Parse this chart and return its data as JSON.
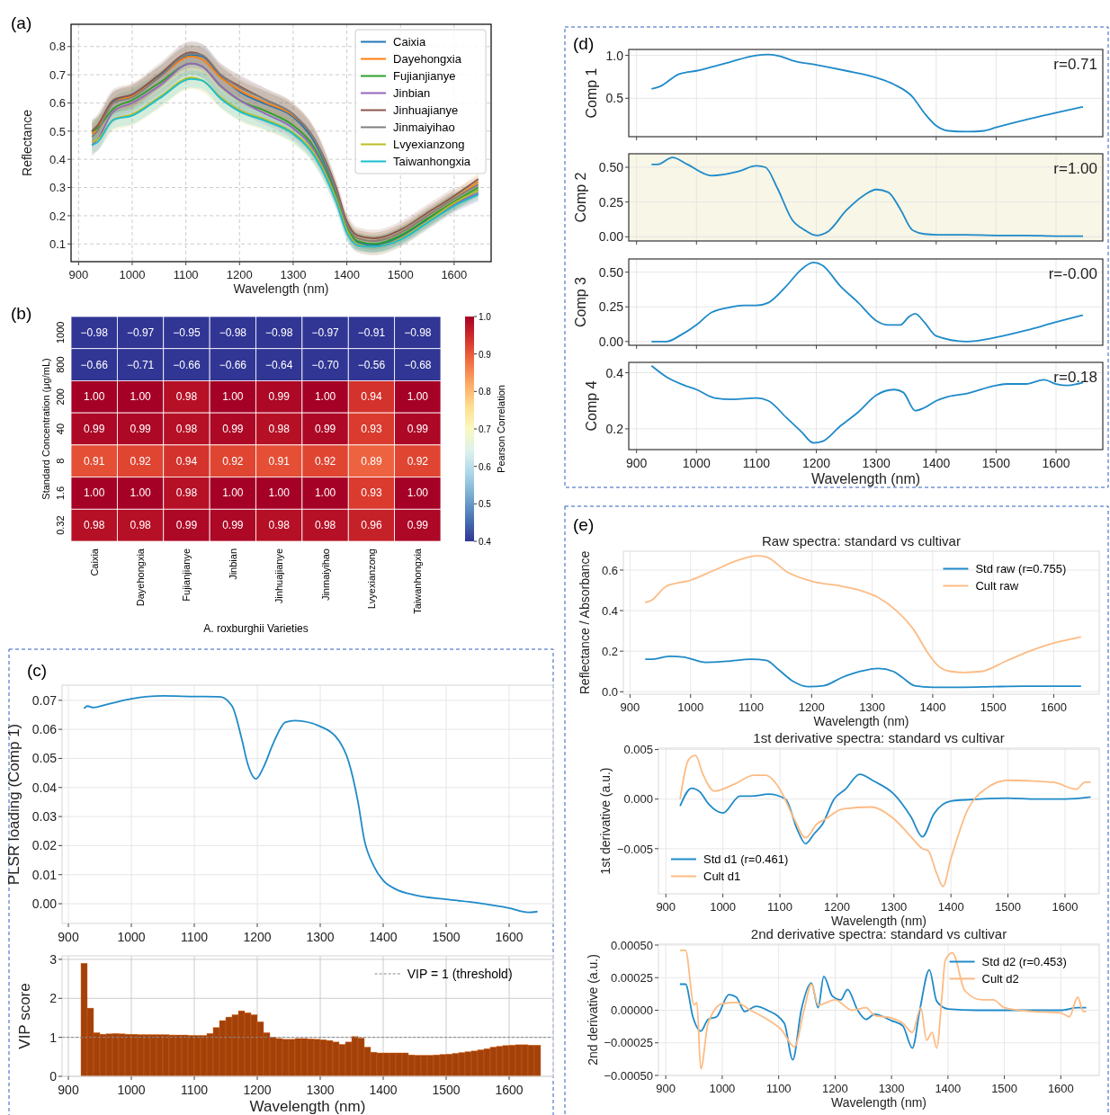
{
  "chart_data": [
    {
      "type": "line",
      "annotations": [
        "(a)"
      ],
      "xlabel": "Wavelength (nm)",
      "ylabel": "Reflectance",
      "xlim": [
        886,
        1669
      ],
      "ylim": [
        0.037,
        0.879
      ],
      "xticks": [
        900,
        1000,
        1100,
        1200,
        1300,
        1400,
        1500,
        1600
      ],
      "yticks": [
        0.1,
        0.2,
        0.3,
        0.4,
        0.5,
        0.6,
        0.7,
        0.8
      ],
      "grid": true,
      "legend": "top right",
      "x": [
        925,
        935,
        965,
        1000,
        1050,
        1110,
        1130,
        1165,
        1200,
        1250,
        1300,
        1340,
        1380,
        1400,
        1420,
        1450,
        1500,
        1550,
        1600,
        1645
      ],
      "series": [
        {
          "name": "Caixia",
          "color": "#1f77b4",
          "values": [
            0.5,
            0.515,
            0.605,
            0.63,
            0.695,
            0.77,
            0.765,
            0.695,
            0.64,
            0.595,
            0.55,
            0.46,
            0.28,
            0.16,
            0.105,
            0.095,
            0.125,
            0.185,
            0.245,
            0.29
          ],
          "lower": [
            0.45,
            0.47,
            0.56,
            0.585,
            0.65,
            0.725,
            0.72,
            0.65,
            0.6,
            0.56,
            0.51,
            0.42,
            0.25,
            0.13,
            0.08,
            0.07,
            0.1,
            0.16,
            0.22,
            0.27
          ],
          "upper": [
            0.53,
            0.55,
            0.64,
            0.665,
            0.73,
            0.805,
            0.8,
            0.73,
            0.68,
            0.64,
            0.59,
            0.5,
            0.31,
            0.19,
            0.14,
            0.13,
            0.16,
            0.22,
            0.28,
            0.33
          ]
        },
        {
          "name": "Dayehongxia",
          "color": "#ff7f0e",
          "values": [
            0.49,
            0.51,
            0.6,
            0.625,
            0.69,
            0.765,
            0.755,
            0.69,
            0.645,
            0.6,
            0.555,
            0.47,
            0.29,
            0.17,
            0.12,
            0.11,
            0.14,
            0.2,
            0.26,
            0.32
          ],
          "lower": [
            0.45,
            0.47,
            0.56,
            0.585,
            0.65,
            0.725,
            0.715,
            0.65,
            0.605,
            0.56,
            0.515,
            0.43,
            0.26,
            0.14,
            0.09,
            0.08,
            0.11,
            0.17,
            0.23,
            0.29
          ],
          "upper": [
            0.53,
            0.55,
            0.64,
            0.665,
            0.73,
            0.805,
            0.795,
            0.73,
            0.685,
            0.64,
            0.595,
            0.51,
            0.32,
            0.2,
            0.15,
            0.14,
            0.17,
            0.23,
            0.29,
            0.35
          ]
        },
        {
          "name": "Fujianjianye",
          "color": "#2ca02c",
          "values": [
            0.5,
            0.51,
            0.58,
            0.61,
            0.67,
            0.74,
            0.73,
            0.66,
            0.61,
            0.57,
            0.52,
            0.44,
            0.27,
            0.16,
            0.11,
            0.1,
            0.13,
            0.19,
            0.25,
            0.3
          ],
          "lower": [
            0.46,
            0.47,
            0.54,
            0.57,
            0.63,
            0.7,
            0.69,
            0.62,
            0.57,
            0.53,
            0.48,
            0.4,
            0.24,
            0.13,
            0.08,
            0.07,
            0.1,
            0.16,
            0.22,
            0.27
          ],
          "upper": [
            0.54,
            0.55,
            0.62,
            0.65,
            0.71,
            0.78,
            0.77,
            0.7,
            0.65,
            0.61,
            0.56,
            0.48,
            0.3,
            0.19,
            0.14,
            0.13,
            0.16,
            0.22,
            0.28,
            0.33
          ]
        },
        {
          "name": "Jinbian",
          "color": "#9467bd",
          "values": [
            0.45,
            0.47,
            0.57,
            0.6,
            0.66,
            0.74,
            0.73,
            0.66,
            0.61,
            0.56,
            0.51,
            0.43,
            0.26,
            0.15,
            0.1,
            0.09,
            0.12,
            0.18,
            0.24,
            0.28
          ],
          "lower": [
            0.41,
            0.43,
            0.53,
            0.56,
            0.62,
            0.7,
            0.69,
            0.62,
            0.57,
            0.52,
            0.47,
            0.39,
            0.23,
            0.12,
            0.07,
            0.06,
            0.09,
            0.15,
            0.21,
            0.25
          ],
          "upper": [
            0.49,
            0.51,
            0.61,
            0.64,
            0.7,
            0.78,
            0.77,
            0.7,
            0.65,
            0.6,
            0.55,
            0.47,
            0.29,
            0.18,
            0.13,
            0.12,
            0.15,
            0.21,
            0.27,
            0.31
          ]
        },
        {
          "name": "Jinhuajianye",
          "color": "#8c564b",
          "values": [
            0.5,
            0.52,
            0.61,
            0.63,
            0.7,
            0.78,
            0.77,
            0.7,
            0.66,
            0.61,
            0.56,
            0.47,
            0.3,
            0.18,
            0.13,
            0.12,
            0.15,
            0.21,
            0.27,
            0.33
          ],
          "lower": [
            0.46,
            0.48,
            0.57,
            0.59,
            0.66,
            0.74,
            0.73,
            0.66,
            0.62,
            0.57,
            0.52,
            0.43,
            0.27,
            0.15,
            0.1,
            0.09,
            0.12,
            0.18,
            0.24,
            null
          ],
          "upper": [
            0.54,
            0.56,
            0.65,
            0.67,
            0.74,
            0.82,
            0.81,
            0.74,
            0.7,
            0.65,
            0.6,
            0.51,
            0.33,
            0.21,
            0.16,
            0.15,
            0.18,
            0.24,
            0.3,
            null
          ]
        },
        {
          "name": "Jinmaiyihao",
          "color": "#7f7f7f",
          "values": [
            0.48,
            0.5,
            0.6,
            0.62,
            0.69,
            0.775,
            0.77,
            0.7,
            0.655,
            0.61,
            0.56,
            0.47,
            0.29,
            0.17,
            0.12,
            0.11,
            0.14,
            0.2,
            0.26,
            0.31
          ],
          "lower": [
            0.44,
            0.46,
            0.56,
            0.58,
            0.65,
            0.735,
            0.73,
            0.66,
            0.615,
            0.57,
            0.52,
            0.43,
            0.26,
            0.14,
            0.09,
            0.08,
            0.11,
            0.17,
            0.23,
            0.28
          ],
          "upper": [
            0.52,
            0.54,
            0.64,
            0.66,
            0.73,
            0.815,
            0.81,
            0.74,
            0.695,
            0.65,
            0.6,
            0.51,
            0.32,
            0.2,
            0.15,
            0.14,
            0.17,
            0.23,
            0.29,
            0.34
          ]
        },
        {
          "name": "Lvyexianzong",
          "color": "#bcbd22",
          "values": [
            0.46,
            0.47,
            0.54,
            0.56,
            0.62,
            0.69,
            0.68,
            0.62,
            0.575,
            0.54,
            0.495,
            0.42,
            0.26,
            0.15,
            0.1,
            0.09,
            0.12,
            0.18,
            0.245,
            0.29
          ],
          "lower": [
            0.42,
            0.43,
            0.5,
            0.52,
            0.58,
            0.65,
            0.64,
            0.58,
            0.535,
            0.5,
            0.455,
            0.38,
            0.23,
            0.12,
            0.07,
            0.06,
            0.09,
            0.15,
            0.215,
            0.26
          ],
          "upper": [
            0.5,
            0.51,
            0.58,
            0.6,
            0.66,
            0.73,
            0.72,
            0.66,
            0.615,
            0.58,
            0.535,
            0.46,
            0.29,
            0.18,
            0.13,
            0.12,
            0.15,
            0.21,
            0.275,
            0.32
          ]
        },
        {
          "name": "Taiwanhongxia",
          "color": "#17becf",
          "values": [
            0.45,
            0.46,
            0.54,
            0.555,
            0.615,
            0.685,
            0.68,
            0.615,
            0.57,
            0.535,
            0.49,
            0.41,
            0.25,
            0.14,
            0.095,
            0.09,
            0.115,
            0.175,
            0.235,
            0.275
          ],
          "lower": [
            0.42,
            0.43,
            0.51,
            0.525,
            0.585,
            0.655,
            0.65,
            0.585,
            0.54,
            0.505,
            0.46,
            0.38,
            0.22,
            0.11,
            0.075,
            0.07,
            0.095,
            0.155,
            0.215,
            0.255
          ],
          "upper": [
            0.48,
            0.49,
            0.57,
            0.585,
            0.645,
            0.715,
            0.71,
            0.645,
            0.6,
            0.565,
            0.52,
            0.44,
            0.28,
            0.17,
            0.115,
            0.11,
            0.135,
            0.195,
            0.255,
            0.295
          ]
        }
      ]
    },
    {
      "type": "heatmap",
      "annotations": [
        "(b)"
      ],
      "xlabel": "A. roxburghii Varieties",
      "ylabel": "Standard Concentration (μg/mL)",
      "clabel": "Pearson Correlation",
      "cell_labels": [
        [
          "−0.98",
          "−0.97",
          "−0.95",
          "−0.98",
          "−0.98",
          "−0.97",
          "−0.91",
          "−0.98"
        ],
        [
          "−0.66",
          "−0.71",
          "−0.66",
          "−0.66",
          "−0.64",
          "−0.70",
          "−0.56",
          "−0.68"
        ],
        [
          "1.00",
          "1.00",
          "0.98",
          "1.00",
          "0.99",
          "1.00",
          "0.94",
          "1.00"
        ],
        [
          "0.99",
          "0.99",
          "0.98",
          "0.99",
          "0.98",
          "0.99",
          "0.93",
          "0.99"
        ],
        [
          "0.91",
          "0.92",
          "0.94",
          "0.92",
          "0.91",
          "0.92",
          "0.89",
          "0.92"
        ],
        [
          "1.00",
          "1.00",
          "0.98",
          "1.00",
          "1.00",
          "1.00",
          "0.93",
          "1.00"
        ],
        [
          "0.98",
          "0.98",
          "0.99",
          "0.99",
          "0.98",
          "0.98",
          "0.96",
          "0.99"
        ]
      ],
      "categories": [
        "Caixia",
        "Dayehongxia",
        "Fujianjianye",
        "Jinbian",
        "Jinhuajianye",
        "Jinmaiyihao",
        "Lvyexianzong",
        "Taiwanhongxia"
      ],
      "y_categories": [
        "1000",
        "800",
        "200",
        "40",
        "8",
        "1.6",
        "0.32"
      ],
      "cells": [
        [
          -0.98,
          -0.97,
          -0.95,
          -0.98,
          -0.98,
          -0.97,
          -0.91,
          -0.98
        ],
        [
          -0.66,
          -0.71,
          -0.66,
          -0.66,
          -0.64,
          -0.7,
          -0.56,
          -0.68
        ],
        [
          1.0,
          1.0,
          0.98,
          1.0,
          0.99,
          1.0,
          0.94,
          1.0
        ],
        [
          0.99,
          0.99,
          0.98,
          0.99,
          0.98,
          0.99,
          0.93,
          0.99
        ],
        [
          0.91,
          0.92,
          0.94,
          0.92,
          0.91,
          0.92,
          0.89,
          0.92
        ],
        [
          1.0,
          1.0,
          0.98,
          1.0,
          1.0,
          1.0,
          0.93,
          1.0
        ],
        [
          0.98,
          0.98,
          0.99,
          0.99,
          0.98,
          0.98,
          0.96,
          0.99
        ]
      ],
      "clim": [
        0.4,
        1.0
      ],
      "cticks": [
        0.4,
        0.5,
        0.6,
        0.7,
        0.8,
        0.9,
        {
          "value": 1,
          "label": "1.0"
        }
      ]
    },
    {
      "type": "line",
      "annotations": [
        "(c)"
      ],
      "ylabel": "PLSR loading (Comp 1)",
      "xlim": [
        890,
        1670
      ],
      "ylim": [
        -0.0068,
        0.0752
      ],
      "xticks": [
        900,
        1000,
        1100,
        1200,
        1300,
        1400,
        1500,
        1600
      ],
      "yticks": [
        {
          "value": 0,
          "label": "0.00"
        },
        {
          "value": 0.01,
          "label": "0.01"
        },
        {
          "value": 0.02,
          "label": "0.02"
        },
        {
          "value": 0.03,
          "label": "0.03"
        },
        {
          "value": 0.04,
          "label": "0.04"
        },
        {
          "value": 0.05,
          "label": "0.05"
        },
        {
          "value": 0.06,
          "label": "0.06"
        },
        {
          "value": 0.07,
          "label": "0.07"
        }
      ],
      "grid": true,
      "series": [
        {
          "color": "#1f8ac9",
          "x": [
            925,
            930,
            940,
            960,
            1000,
            1050,
            1100,
            1140,
            1160,
            1175,
            1185,
            1198,
            1210,
            1225,
            1245,
            1260,
            1300,
            1330,
            1345,
            1360,
            1370,
            1385,
            1400,
            1420,
            1450,
            1500,
            1550,
            1600,
            1630,
            1645
          ],
          "values": [
            0.0672,
            0.068,
            0.0675,
            0.0685,
            0.0705,
            0.0715,
            0.0713,
            0.0712,
            0.068,
            0.057,
            0.048,
            0.043,
            0.047,
            0.055,
            0.0625,
            0.063,
            0.061,
            0.056,
            0.049,
            0.035,
            0.022,
            0.013,
            0.008,
            0.005,
            0.003,
            0.0015,
            0.0003,
            -0.0015,
            -0.003,
            -0.0027
          ]
        }
      ]
    },
    {
      "type": "bar",
      "xlabel": "Wavelength (nm)",
      "ylabel": "VIP score",
      "xlim": [
        890,
        1670
      ],
      "ylim": [
        0,
        3.09
      ],
      "xticks": [
        900,
        1000,
        1100,
        1200,
        1300,
        1400,
        1500,
        1600
      ],
      "yticks": [
        0,
        1,
        2,
        3
      ],
      "grid": true,
      "legend": "top right",
      "color": "#a3410a",
      "x": [
        925,
        935,
        945,
        955,
        965,
        975,
        985,
        995,
        1005,
        1015,
        1025,
        1035,
        1045,
        1055,
        1065,
        1075,
        1085,
        1095,
        1105,
        1115,
        1125,
        1135,
        1145,
        1155,
        1165,
        1175,
        1185,
        1195,
        1205,
        1215,
        1225,
        1235,
        1245,
        1255,
        1265,
        1275,
        1285,
        1295,
        1305,
        1315,
        1325,
        1335,
        1345,
        1355,
        1365,
        1375,
        1385,
        1395,
        1405,
        1415,
        1425,
        1435,
        1445,
        1455,
        1465,
        1475,
        1485,
        1495,
        1505,
        1515,
        1525,
        1535,
        1545,
        1555,
        1565,
        1575,
        1585,
        1595,
        1605,
        1615,
        1625,
        1635,
        1645
      ],
      "values": [
        2.9,
        1.75,
        1.12,
        1.08,
        1.09,
        1.1,
        1.09,
        1.08,
        1.08,
        1.07,
        1.07,
        1.07,
        1.07,
        1.07,
        1.06,
        1.06,
        1.06,
        1.05,
        1.05,
        1.05,
        1.1,
        1.25,
        1.43,
        1.52,
        1.58,
        1.68,
        1.63,
        1.58,
        1.4,
        1.12,
        1.0,
        0.97,
        0.95,
        0.95,
        0.97,
        0.97,
        0.96,
        0.95,
        0.94,
        0.92,
        0.88,
        0.82,
        0.88,
        1.02,
        0.98,
        0.75,
        0.62,
        0.6,
        0.6,
        0.6,
        0.6,
        0.6,
        0.55,
        0.54,
        0.54,
        0.54,
        0.55,
        0.56,
        0.57,
        0.59,
        0.61,
        0.63,
        0.65,
        0.68,
        0.71,
        0.75,
        0.77,
        0.79,
        0.8,
        0.81,
        0.81,
        0.8,
        0.8
      ],
      "ref_lines": [
        {
          "axis": "y",
          "value": 1,
          "label": "VIP = 1 (threshold)",
          "color": "#888888",
          "line_style": "dashed"
        }
      ]
    },
    {
      "type": "line",
      "annotations": [
        "(d)",
        "r=0.71"
      ],
      "ylabel": "Comp 1",
      "xlim": [
        887,
        1678
      ],
      "ylim": [
        0.052,
        1.069
      ],
      "xticks": [
        900,
        1000,
        1100,
        1200,
        1300,
        1400,
        1500,
        1600
      ],
      "yticks": [
        0.5,
        {
          "value": 1,
          "label": "1.0"
        }
      ],
      "grid": true,
      "tick_labels": "y",
      "series": [
        {
          "color": "#1f8ac9",
          "x": [
            925,
            940,
            970,
            1000,
            1050,
            1100,
            1120,
            1140,
            1160,
            1200,
            1250,
            1300,
            1330,
            1360,
            1380,
            1400,
            1420,
            1450,
            1480,
            1500,
            1550,
            1600,
            1645
          ],
          "values": [
            0.61,
            0.64,
            0.78,
            0.82,
            0.91,
            1.0,
            1.01,
            0.99,
            0.94,
            0.89,
            0.82,
            0.74,
            0.66,
            0.52,
            0.33,
            0.18,
            0.12,
            0.11,
            0.12,
            0.16,
            0.25,
            0.33,
            0.4
          ]
        }
      ]
    },
    {
      "type": "line",
      "annotations": [
        "r=1.00"
      ],
      "ylabel": "Comp 2",
      "xlim": [
        887,
        1678
      ],
      "ylim": [
        -0.03,
        0.597
      ],
      "xticks": [
        900,
        1000,
        1100,
        1200,
        1300,
        1400,
        1500,
        1600
      ],
      "yticks": [
        {
          "value": 0,
          "label": "0.00"
        },
        {
          "value": 0.25,
          "label": "0.25"
        },
        {
          "value": 0.5,
          "label": "0.50"
        }
      ],
      "grid": true,
      "tick_labels": "y",
      "bands": [
        {
          "axis": "x",
          "from": 887,
          "to": 1678,
          "color": "#f8f6e6"
        }
      ],
      "series": [
        {
          "color": "#1f8ac9",
          "x": [
            925,
            935,
            960,
            985,
            1025,
            1070,
            1100,
            1115,
            1135,
            1160,
            1180,
            1200,
            1220,
            1250,
            1280,
            1300,
            1320,
            1340,
            1360,
            1380,
            1400,
            1450,
            1500,
            1550,
            1600,
            1645
          ],
          "values": [
            0.52,
            0.52,
            0.57,
            0.52,
            0.44,
            0.47,
            0.51,
            0.5,
            0.35,
            0.12,
            0.05,
            0.01,
            0.04,
            0.19,
            0.3,
            0.34,
            0.32,
            0.2,
            0.05,
            0.02,
            0.015,
            0.015,
            0.01,
            0.01,
            0.005,
            0.005
          ]
        }
      ]
    },
    {
      "type": "line",
      "annotations": [
        "r=-0.00"
      ],
      "ylabel": "Comp 3",
      "xlim": [
        887,
        1678
      ],
      "ylim": [
        -0.027,
        0.595
      ],
      "xticks": [
        900,
        1000,
        1100,
        1200,
        1300,
        1400,
        1500,
        1600
      ],
      "yticks": [
        {
          "value": 0,
          "label": "0.00"
        },
        {
          "value": 0.25,
          "label": "0.25"
        },
        {
          "value": 0.5,
          "label": "0.50"
        }
      ],
      "grid": true,
      "tick_labels": "y",
      "series": [
        {
          "color": "#1f8ac9",
          "x": [
            925,
            950,
            975,
            1000,
            1025,
            1060,
            1080,
            1100,
            1120,
            1150,
            1175,
            1195,
            1210,
            1240,
            1270,
            1300,
            1320,
            1340,
            1355,
            1365,
            1380,
            1400,
            1450,
            1500,
            1550,
            1600,
            1645
          ],
          "values": [
            0.0,
            0.0,
            0.05,
            0.12,
            0.21,
            0.25,
            0.26,
            0.26,
            0.28,
            0.4,
            0.52,
            0.57,
            0.55,
            0.4,
            0.28,
            0.15,
            0.12,
            0.12,
            0.18,
            0.2,
            0.14,
            0.04,
            0.0,
            0.03,
            0.08,
            0.14,
            0.19
          ]
        }
      ]
    },
    {
      "type": "line",
      "annotations": [
        "r=0.18"
      ],
      "xlabel": "Wavelength (nm)",
      "ylabel": "Comp 4",
      "xlim": [
        887,
        1678
      ],
      "ylim": [
        0.126,
        0.437
      ],
      "xticks": [
        900,
        1000,
        1100,
        1200,
        1300,
        1400,
        1500,
        1600
      ],
      "yticks": [
        0.2,
        0.4
      ],
      "grid": true,
      "series": [
        {
          "color": "#1f8ac9",
          "x": [
            925,
            950,
            980,
            1000,
            1030,
            1060,
            1100,
            1120,
            1150,
            1175,
            1195,
            1210,
            1240,
            1270,
            1300,
            1330,
            1345,
            1365,
            1380,
            1400,
            1420,
            1450,
            1500,
            1520,
            1550,
            1580,
            1600,
            1620,
            1645
          ],
          "values": [
            0.425,
            0.385,
            0.355,
            0.34,
            0.31,
            0.305,
            0.31,
            0.3,
            0.24,
            0.19,
            0.15,
            0.155,
            0.21,
            0.26,
            0.32,
            0.34,
            0.33,
            0.265,
            0.275,
            0.3,
            0.315,
            0.325,
            0.355,
            0.36,
            0.36,
            0.375,
            0.36,
            0.355,
            0.365
          ]
        }
      ]
    },
    {
      "type": "line",
      "annotations": [
        "(e)"
      ],
      "title": "Raw spectra: standard vs cultivar",
      "xlabel": "Wavelength (nm)",
      "ylabel": "Reflectance / Absorbance",
      "xlim": [
        889,
        1675
      ],
      "ylim": [
        -0.012,
        0.693
      ],
      "xticks": [
        900,
        1000,
        1100,
        1200,
        1300,
        1400,
        1500,
        1600
      ],
      "yticks": [
        {
          "value": 0,
          "label": "0.0"
        },
        {
          "value": 0.2,
          "label": "0.2"
        },
        {
          "value": 0.4,
          "label": "0.4"
        },
        {
          "value": 0.6,
          "label": "0.6"
        }
      ],
      "grid": true,
      "legend": "top right",
      "series": [
        {
          "name": "Std raw (r=0.755)",
          "color": "#1f8ac9",
          "x": [
            925,
            935,
            965,
            990,
            1025,
            1060,
            1100,
            1125,
            1145,
            1170,
            1195,
            1220,
            1250,
            1280,
            1310,
            1335,
            1350,
            1370,
            1400,
            1450,
            1500,
            1550,
            1600,
            1645
          ],
          "values": [
            0.16,
            0.16,
            0.175,
            0.17,
            0.145,
            0.15,
            0.16,
            0.155,
            0.11,
            0.05,
            0.025,
            0.03,
            0.07,
            0.1,
            0.115,
            0.1,
            0.07,
            0.03,
            0.022,
            0.022,
            0.025,
            0.027,
            0.027,
            0.027
          ]
        },
        {
          "name": "Cult raw",
          "color": "#fdbb84",
          "x": [
            925,
            935,
            960,
            1000,
            1040,
            1080,
            1110,
            1125,
            1160,
            1200,
            1250,
            1280,
            1310,
            1340,
            1370,
            1390,
            1410,
            1430,
            1450,
            1480,
            1520,
            1560,
            1600,
            1645
          ],
          "values": [
            0.44,
            0.45,
            0.52,
            0.55,
            0.6,
            0.65,
            0.67,
            0.665,
            0.59,
            0.545,
            0.52,
            0.5,
            0.465,
            0.4,
            0.3,
            0.2,
            0.125,
            0.1,
            0.095,
            0.1,
            0.15,
            0.2,
            0.24,
            0.27
          ]
        }
      ]
    },
    {
      "type": "line",
      "title": "1st derivative spectra: standard vs cultivar",
      "xlabel": "Wavelength (nm)",
      "ylabel": "1st derivative (a.u.)",
      "xlim": [
        887,
        1660
      ],
      "ylim": [
        -0.00955,
        0.00514
      ],
      "xticks": [
        900,
        1000,
        1100,
        1200,
        1300,
        1400,
        1500,
        1600
      ],
      "yticks": [
        {
          "value": -0.005,
          "label": "−0.005"
        },
        {
          "value": 0,
          "label": "0.000"
        },
        {
          "value": 0.005,
          "label": "0.005"
        }
      ],
      "grid": true,
      "legend": "bottom left",
      "series": [
        {
          "name": "Std d1 (r=0.461)",
          "color": "#1f8ac9",
          "x": [
            925,
            945,
            960,
            975,
            1000,
            1030,
            1050,
            1080,
            1110,
            1130,
            1145,
            1160,
            1175,
            1195,
            1215,
            1240,
            1265,
            1300,
            1330,
            1350,
            1370,
            1400,
            1450,
            1500,
            1550,
            1600,
            1645
          ],
          "values": [
            -0.0007,
            0.0011,
            0.0007,
            -0.0005,
            -0.0014,
            0.0003,
            0.0003,
            0.0005,
            0,
            -0.003,
            -0.0045,
            -0.0035,
            -0.0025,
            0,
            0.001,
            0.0025,
            0.0018,
            0.0005,
            -0.0018,
            -0.0038,
            -0.0015,
            -0.0002,
            0,
            0.0001,
            0,
            0,
            0.0002
          ]
        },
        {
          "name": "Cult d1",
          "color": "#fdbb84",
          "x": [
            925,
            940,
            952,
            965,
            985,
            1020,
            1055,
            1075,
            1100,
            1125,
            1145,
            1165,
            1180,
            1210,
            1260,
            1300,
            1330,
            1350,
            1360,
            1375,
            1386,
            1400,
            1430,
            1460,
            1500,
            1550,
            1580,
            1620,
            1635,
            1645
          ],
          "values": [
            0,
            0.004,
            0.0044,
            0.0025,
            0.0008,
            0.0015,
            0.0024,
            0.0024,
            0.001,
            -0.002,
            -0.0039,
            -0.0025,
            -0.002,
            -0.001,
            -0.0008,
            -0.002,
            -0.0038,
            -0.005,
            -0.0052,
            -0.0075,
            -0.0088,
            -0.006,
            -0.001,
            0.001,
            0.0019,
            0.0018,
            0.0017,
            0.001,
            0.0017,
            0.0017
          ]
        }
      ]
    },
    {
      "type": "line",
      "title": "2nd derivative spectra: standard vs cultivar",
      "xlabel": "Wavelength (nm)",
      "ylabel": "2nd derivative (a.u.)",
      "xlim": [
        887,
        1668
      ],
      "ylim": [
        -0.0005,
        0.000507
      ],
      "xticks": [
        900,
        1000,
        1100,
        1200,
        1300,
        1400,
        1500,
        1600
      ],
      "yticks": [
        {
          "value": -0.0005,
          "label": "−0.00050"
        },
        {
          "value": -0.00025,
          "label": "−0.00025"
        },
        {
          "value": 0,
          "label": "0.00000"
        },
        {
          "value": 0.00025,
          "label": "0.00025"
        },
        {
          "value": 0.0005,
          "label": "0.00050"
        }
      ],
      "grid": true,
      "legend": "top right",
      "series": [
        {
          "name": "Std d2 (r=0.453)",
          "color": "#1f8ac9",
          "x": [
            925,
            935,
            948,
            962,
            975,
            990,
            1012,
            1025,
            1040,
            1060,
            1080,
            1110,
            1125,
            1140,
            1158,
            1170,
            1180,
            1195,
            1210,
            1222,
            1240,
            1255,
            1270,
            1300,
            1320,
            1337,
            1350,
            1367,
            1380,
            1400,
            1450,
            1500,
            1550,
            1600,
            1630,
            1645
          ],
          "values": [
            0.0002,
            0.0002,
            -5e-05,
            -0.00016,
            -7e-05,
            -5e-05,
            0.00012,
            0.0001,
            -1e-05,
            3e-05,
            0.0,
            -0.0001,
            -0.00038,
            0.0,
            0.00021,
            2e-05,
            0.00026,
            0.00011,
            8e-05,
            0.00016,
            0.0,
            -7e-05,
            -3e-05,
            -8e-05,
            -0.00012,
            -0.00029,
            0.0,
            0.00031,
            7e-05,
            1e-05,
            0.0,
            0.0,
            0.0,
            0.0,
            2e-05,
            2e-05
          ]
        },
        {
          "name": "Cult d2",
          "color": "#fdbb84",
          "x": [
            925,
            935,
            950,
            955,
            962,
            975,
            1000,
            1025,
            1050,
            1080,
            1105,
            1128,
            1145,
            1158,
            1170,
            1200,
            1230,
            1255,
            1270,
            1300,
            1320,
            1337,
            1352,
            1362,
            1372,
            1380,
            1390,
            1395,
            1408,
            1430,
            1460,
            1480,
            1500,
            1550,
            1600,
            1615,
            1630,
            1640,
            1645
          ],
          "values": [
            0.00046,
            0.00046,
            4e-05,
            6e-05,
            -0.00045,
            -0.0001,
            5e-05,
            6e-05,
            0.0,
            -7e-05,
            -0.00015,
            -0.00028,
            0.0,
            0.0002,
            4e-05,
            8e-05,
            0.0,
            2e-05,
            -4e-05,
            -6e-05,
            -0.0001,
            -0.00017,
            2e-05,
            -0.00023,
            -0.00017,
            -0.00029,
            0.00014,
            0.00038,
            0.00044,
            0.00015,
            8e-05,
            8e-05,
            2e-05,
            -1e-05,
            -2e-05,
            -5e-05,
            0.0001,
            -1e-05,
            -1e-05
          ]
        }
      ]
    }
  ]
}
